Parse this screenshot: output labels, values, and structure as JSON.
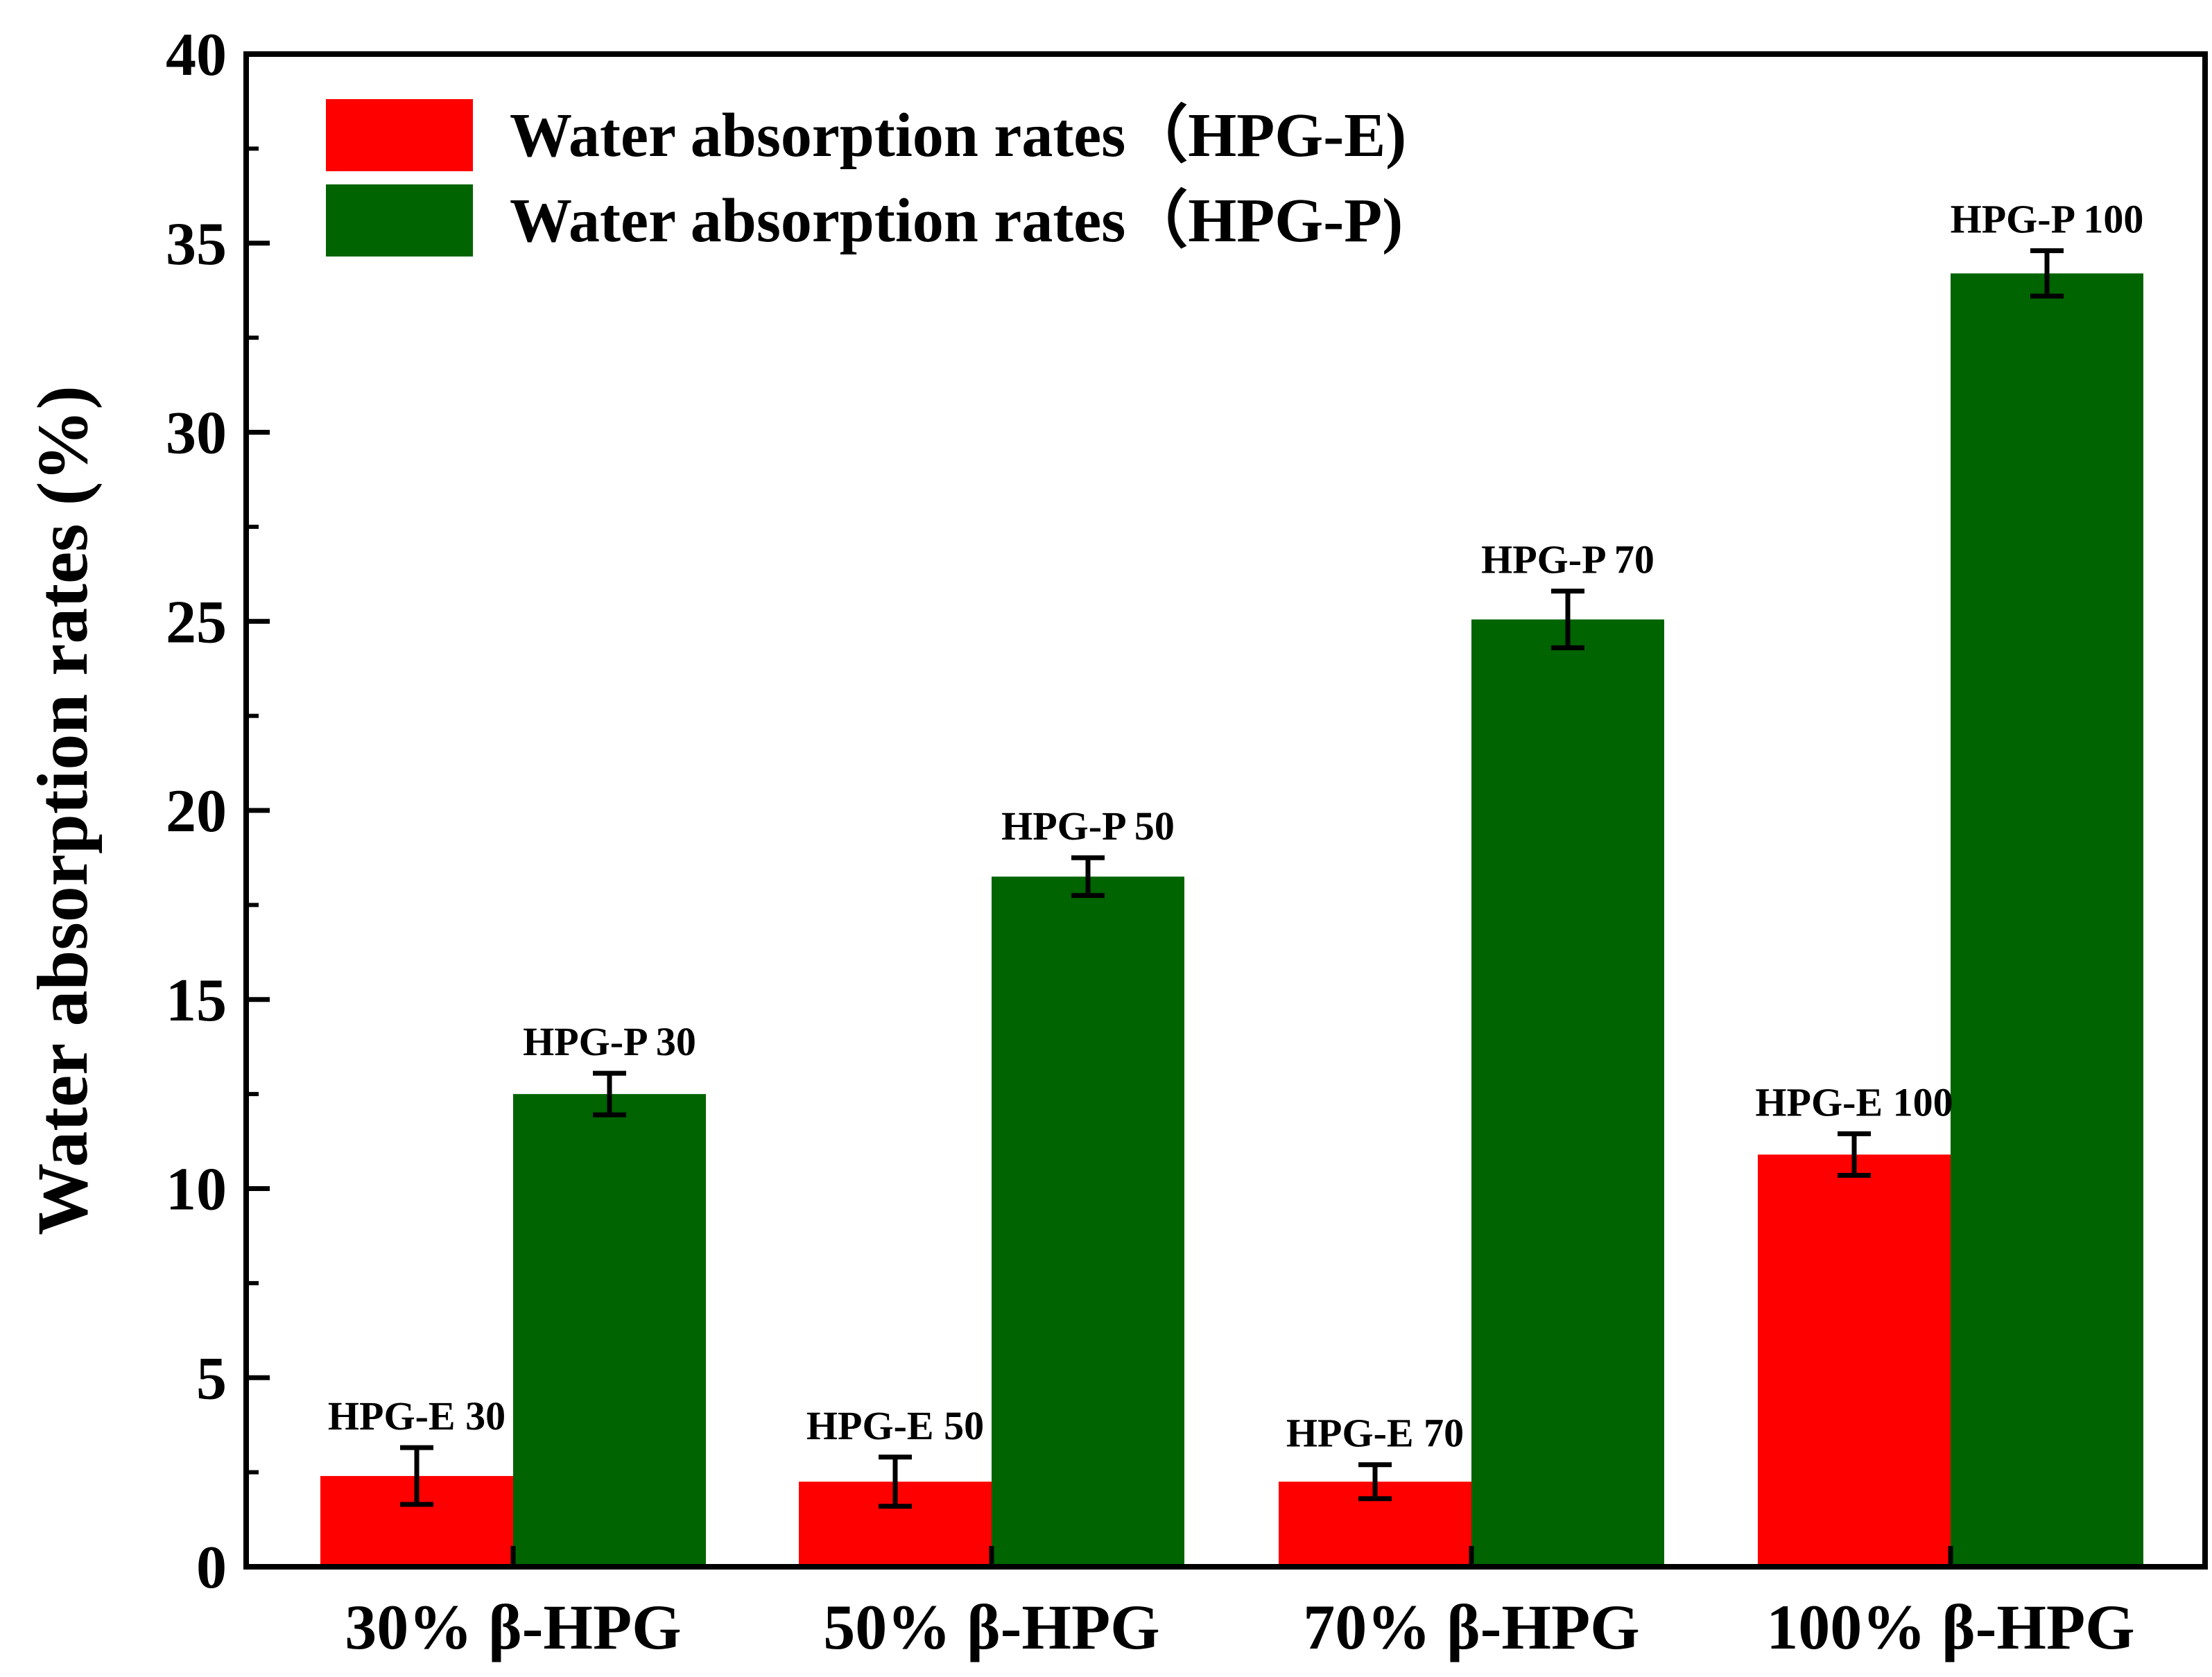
{
  "chart_data": {
    "type": "bar",
    "title": "",
    "xlabel": "",
    "ylabel": "Water absorption rates (%)",
    "ylim": [
      0,
      40
    ],
    "yticks": [
      0,
      5,
      10,
      15,
      20,
      25,
      30,
      35,
      40
    ],
    "categories": [
      "30% β-HPG",
      "50% β-HPG",
      "70% β-HPG",
      "100% β-HPG"
    ],
    "legend_position": "top-left",
    "series": [
      {
        "name": "Water absorption rates（HPG-E)",
        "color": "#ff0000",
        "values": [
          2.4,
          2.25,
          2.25,
          10.9
        ],
        "errors": [
          0.75,
          0.65,
          0.45,
          0.55
        ],
        "labels": [
          "HPG-E 30",
          "HPG-E 50",
          "HPG-E 70",
          "HPG-E 100"
        ]
      },
      {
        "name": "Water absorption rates（HPG-P)",
        "color": "#006400",
        "values": [
          12.5,
          18.25,
          25.05,
          34.2
        ],
        "errors": [
          0.55,
          0.5,
          0.75,
          0.6
        ],
        "labels": [
          "HPG-P 30",
          "HPG-P 50",
          "HPG-P 70",
          "HPG-P 100"
        ]
      }
    ]
  }
}
